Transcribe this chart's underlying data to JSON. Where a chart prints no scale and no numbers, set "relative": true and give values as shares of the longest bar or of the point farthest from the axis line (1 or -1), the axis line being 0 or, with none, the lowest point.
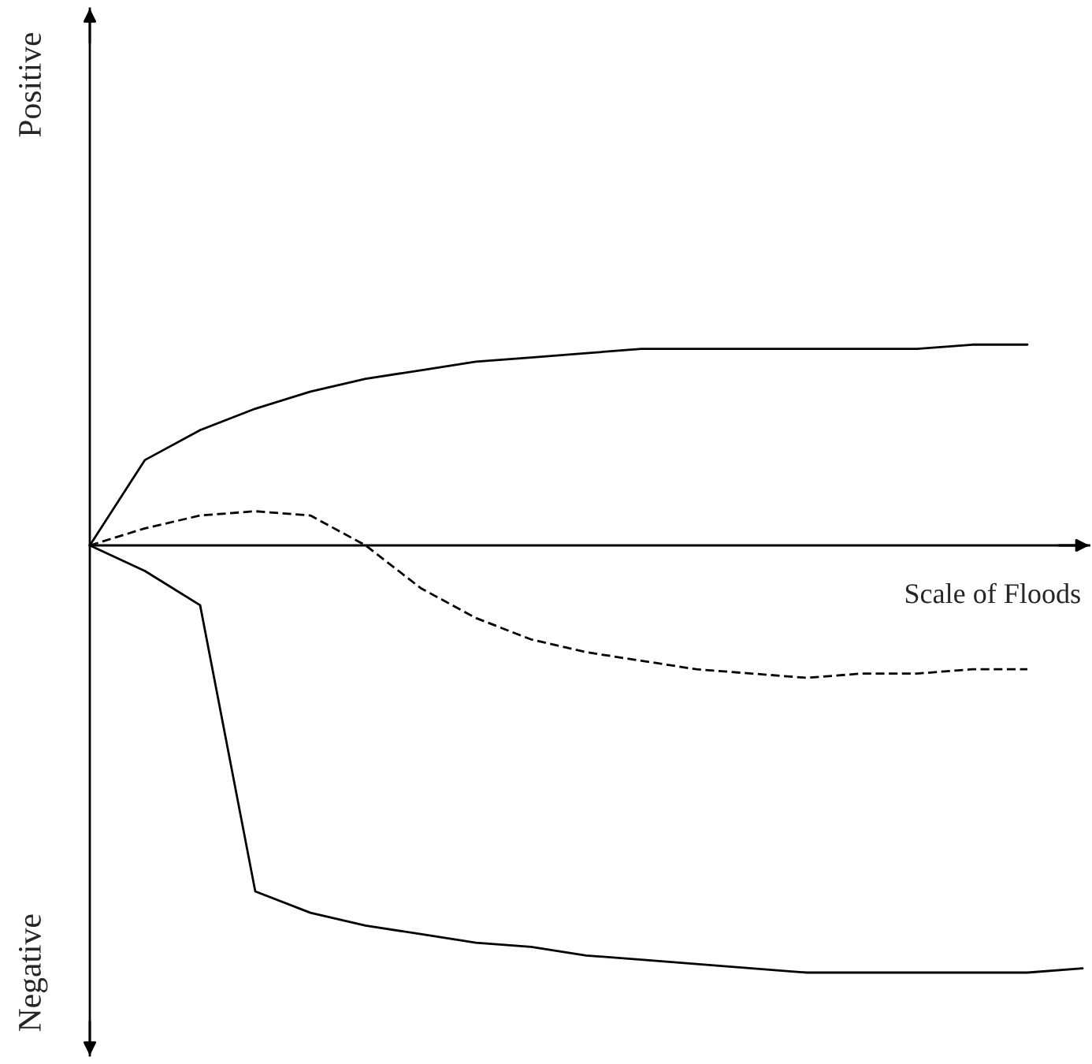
{
  "chart_data": {
    "type": "line",
    "relative": true,
    "xlabel": "Scale of Floods",
    "categories": [
      null,
      null,
      null,
      null,
      null,
      null,
      null,
      null,
      null,
      null,
      null,
      null,
      null,
      null,
      null,
      null,
      null,
      null,
      null
    ],
    "annotations": [
      "Positive",
      "Negative"
    ],
    "series": [
      {
        "color": "#000000",
        "line_style": "solid",
        "values": [
          0,
          0.2,
          0.27,
          0.32,
          0.36,
          0.39,
          0.41,
          0.43,
          0.44,
          0.45,
          0.46,
          0.46,
          0.46,
          0.46,
          0.46,
          0.46,
          0.47,
          0.47,
          null
        ]
      },
      {
        "color": "#000000",
        "line_style": "dashed",
        "values": [
          0,
          0.04,
          0.07,
          0.08,
          0.07,
          0.0,
          -0.1,
          -0.17,
          -0.22,
          -0.25,
          -0.27,
          -0.29,
          -0.3,
          -0.31,
          -0.3,
          -0.3,
          -0.29,
          -0.29,
          null
        ]
      },
      {
        "color": "#000000",
        "line_style": "solid",
        "values": [
          0,
          -0.06,
          -0.14,
          -0.81,
          -0.86,
          -0.89,
          -0.91,
          -0.93,
          -0.94,
          -0.96,
          -0.97,
          -0.98,
          -0.99,
          -1.0,
          -1.0,
          -1.0,
          -1.0,
          -1.0,
          -0.99
        ]
      }
    ]
  }
}
